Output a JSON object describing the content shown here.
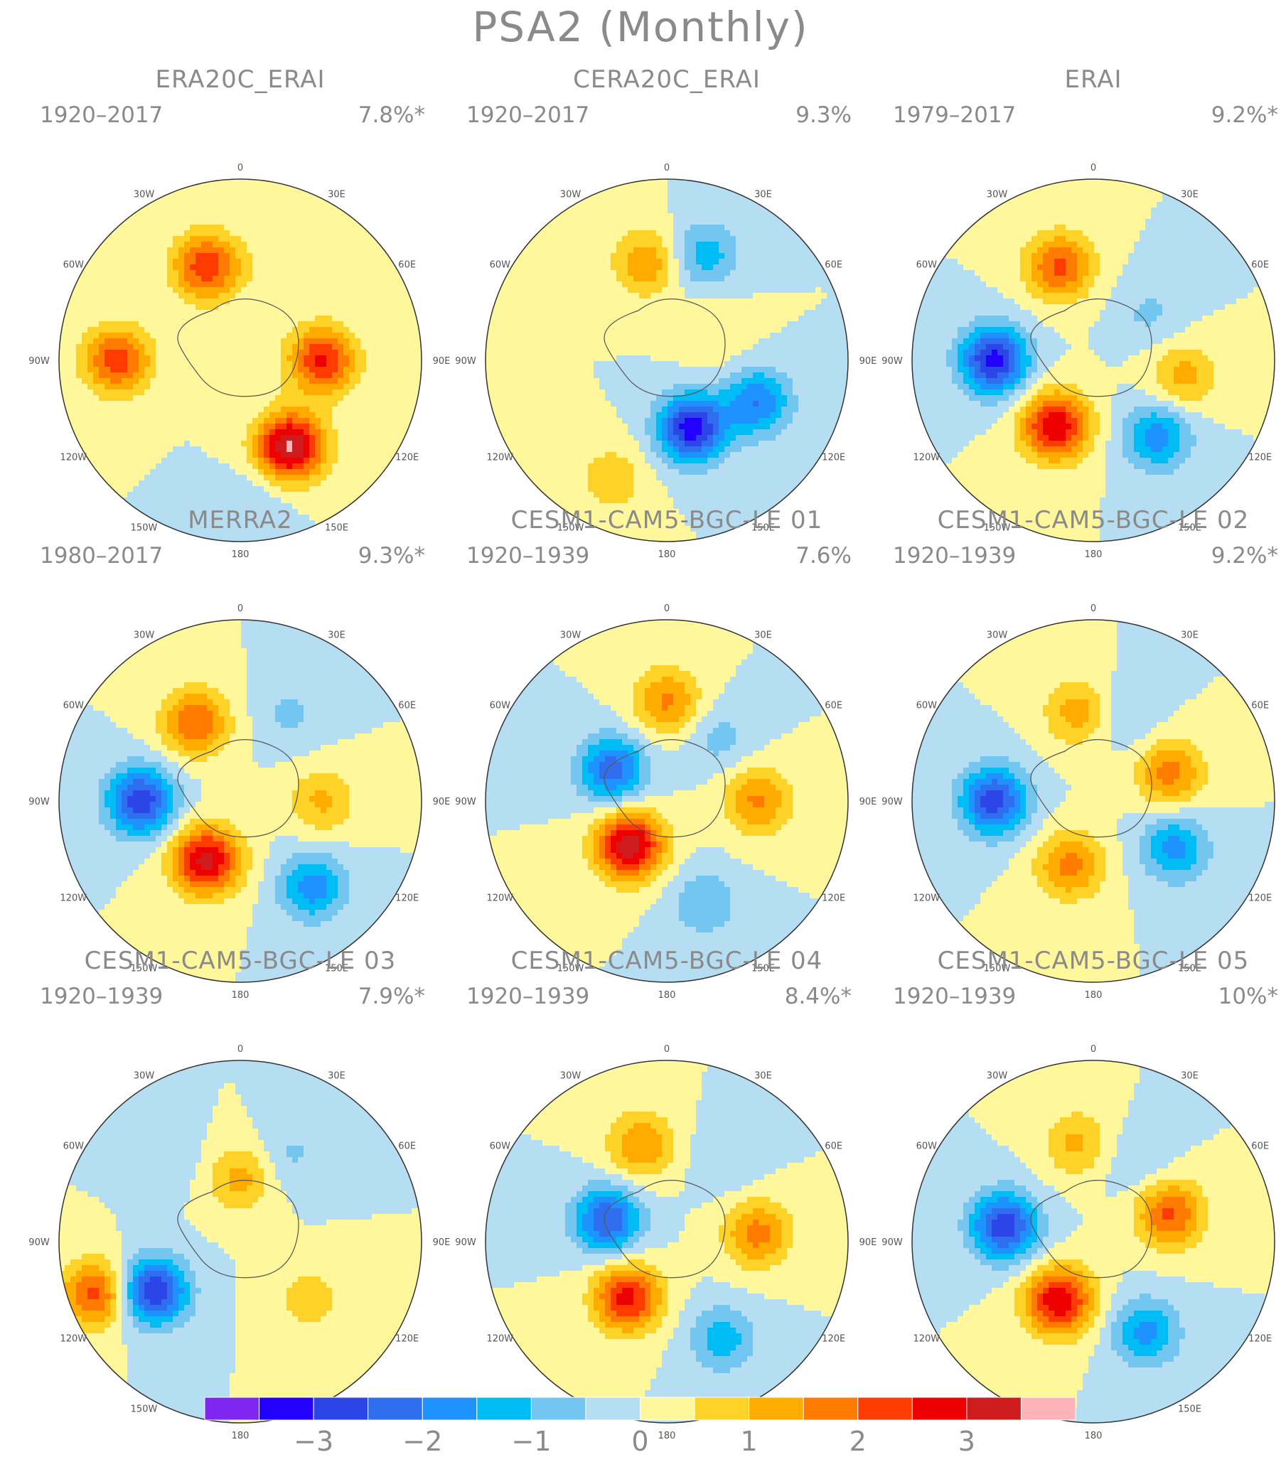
{
  "title": "PSA2 (Monthly)",
  "lon_labels": [
    "0",
    "30E",
    "60E",
    "90E",
    "120E",
    "150E",
    "180",
    "150W",
    "120W",
    "90W",
    "60W",
    "30W"
  ],
  "colorbar": {
    "colors": [
      "#7f26f0",
      "#2200ff",
      "#2b45e6",
      "#2f6fef",
      "#1e93ff",
      "#00bcf5",
      "#73c6f0",
      "#b6def3",
      "#fff79c",
      "#ffd228",
      "#ffab00",
      "#ff7c00",
      "#ff3b00",
      "#ee0000",
      "#cf1b1b",
      "#ffb3b8"
    ],
    "tick_labels": [
      "−3",
      "−2",
      "−1",
      "0",
      "1",
      "2",
      "3"
    ],
    "tick_values": [
      -3,
      -2,
      -1,
      0,
      1,
      2,
      3
    ],
    "level_step": 0.5
  },
  "panels": [
    {
      "title": "ERA20C_ERAI",
      "period": "1920–2017",
      "pct": "7.8%*",
      "centers": [
        [
          340,
          0.55,
          2.4
        ],
        [
          270,
          0.68,
          2.3
        ],
        [
          150,
          0.55,
          3.6
        ],
        [
          90,
          0.45,
          2.6
        ],
        [
          175,
          0.8,
          -0.5
        ],
        [
          15,
          0.55,
          0.2
        ]
      ]
    },
    {
      "title": "CERA20C_ERAI",
      "period": "1920–2017",
      "pct": "9.3%",
      "centers": [
        [
          348,
          0.55,
          1.4
        ],
        [
          20,
          0.62,
          -1.3
        ],
        [
          160,
          0.4,
          -3.3
        ],
        [
          115,
          0.55,
          -2.0
        ],
        [
          205,
          0.72,
          0.9
        ],
        [
          60,
          0.3,
          0.5
        ]
      ]
    },
    {
      "title": "ERAI",
      "period": "1979–2017",
      "pct": "9.2%*",
      "centers": [
        [
          340,
          0.55,
          2.1
        ],
        [
          270,
          0.55,
          -3.2
        ],
        [
          210,
          0.42,
          3.0
        ],
        [
          140,
          0.55,
          -1.8
        ],
        [
          100,
          0.5,
          1.2
        ],
        [
          50,
          0.4,
          -0.6
        ]
      ]
    },
    {
      "title": "MERRA2",
      "period": "1980–2017",
      "pct": "9.3%*",
      "centers": [
        [
          330,
          0.5,
          2.0
        ],
        [
          270,
          0.55,
          -2.9
        ],
        [
          210,
          0.38,
          3.2
        ],
        [
          140,
          0.62,
          -1.8
        ],
        [
          90,
          0.45,
          1.1
        ],
        [
          30,
          0.55,
          -0.6
        ]
      ]
    },
    {
      "title": "CESM1-CAM5-BGC-LE 01",
      "period": "1920–1939",
      "pct": "7.6%",
      "centers": [
        [
          0,
          0.55,
          1.6
        ],
        [
          300,
          0.35,
          -2.3
        ],
        [
          220,
          0.32,
          3.4
        ],
        [
          160,
          0.6,
          -1.0
        ],
        [
          90,
          0.5,
          1.6
        ],
        [
          40,
          0.45,
          -0.7
        ]
      ]
    },
    {
      "title": "CESM1-CAM5-BGC-LE 02",
      "period": "1920–1939",
      "pct": "9.2%*",
      "centers": [
        [
          350,
          0.5,
          1.3
        ],
        [
          270,
          0.55,
          -2.8
        ],
        [
          200,
          0.38,
          1.7
        ],
        [
          120,
          0.52,
          -1.7
        ],
        [
          70,
          0.45,
          1.7
        ],
        [
          20,
          0.5,
          -0.6
        ]
      ]
    },
    {
      "title": "CESM1-CAM5-BGC-LE 03",
      "period": "1920–1939",
      "pct": "7.9%*",
      "centers": [
        [
          240,
          0.55,
          -3.0
        ],
        [
          250,
          0.85,
          2.2
        ],
        [
          0,
          0.35,
          1.2
        ],
        [
          30,
          0.55,
          -0.6
        ],
        [
          320,
          0.6,
          -0.4
        ],
        [
          130,
          0.5,
          0.8
        ]
      ]
    },
    {
      "title": "CESM1-CAM5-BGC-LE 04",
      "period": "1920–1939",
      "pct": "8.4%*",
      "centers": [
        [
          345,
          0.55,
          1.5
        ],
        [
          290,
          0.35,
          -2.5
        ],
        [
          215,
          0.38,
          2.7
        ],
        [
          150,
          0.62,
          -1.3
        ],
        [
          85,
          0.5,
          1.7
        ],
        [
          35,
          0.55,
          -0.5
        ]
      ]
    },
    {
      "title": "CESM1-CAM5-BGC-LE 05",
      "period": "1920–1939",
      "pct": "10%*",
      "centers": [
        [
          350,
          0.55,
          1.1
        ],
        [
          280,
          0.5,
          -2.9
        ],
        [
          210,
          0.38,
          3.0
        ],
        [
          150,
          0.58,
          -1.7
        ],
        [
          70,
          0.45,
          2.1
        ],
        [
          30,
          0.5,
          -0.5
        ]
      ]
    }
  ]
}
